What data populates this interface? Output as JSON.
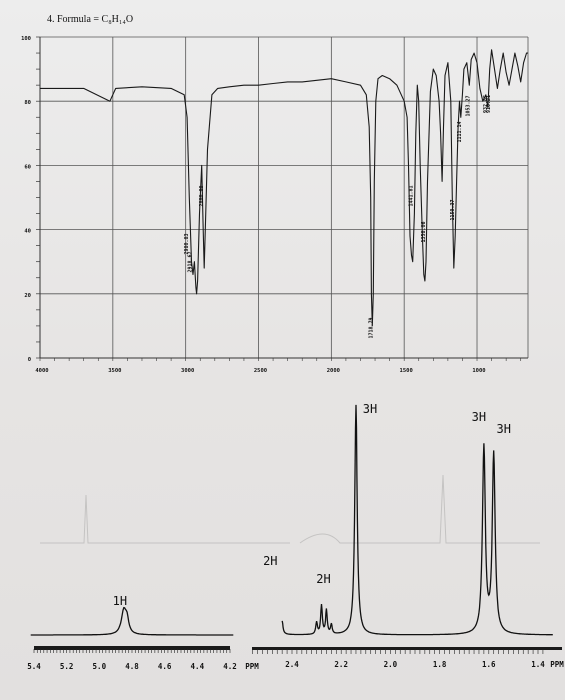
{
  "header": {
    "title": "4.  Formula = C₈H₁₄O"
  },
  "chart_data": [
    {
      "type": "line",
      "title": "",
      "xlabel": "",
      "ylabel": "",
      "x_reversed": true,
      "xlim": [
        4000,
        650
      ],
      "ylim": [
        0,
        100
      ],
      "x_ticks": [
        "4000",
        "3500",
        "3000",
        "2500",
        "2000",
        "1500",
        "1000"
      ],
      "y_ticks": [
        "100",
        "80",
        "60",
        "40",
        "20",
        "0"
      ],
      "grid": true,
      "series": [
        {
          "x": [
            4000,
            3700,
            3520,
            3480,
            3300,
            3100,
            3010,
            2990,
            2975,
            2960,
            2950,
            2940,
            2930,
            2925,
            2918,
            2905,
            2890,
            2880,
            2873,
            2865,
            2850,
            2820,
            2780,
            2700,
            2600,
            2500,
            2400,
            2300,
            2200,
            2100,
            2000,
            1900,
            1800,
            1760,
            1740,
            1730,
            1725,
            1718.79,
            1712,
            1705,
            1695,
            1680,
            1650,
            1600,
            1550,
            1500,
            1480,
            1470,
            1460,
            1450,
            1441.81,
            1430,
            1420,
            1410,
            1400,
            1390,
            1375,
            1365,
            1358.06,
            1350,
            1340,
            1320,
            1300,
            1280,
            1260,
            1250,
            1240,
            1230,
            1220,
            1200,
            1180,
            1170,
            1159.37,
            1150,
            1140,
            1130,
            1120,
            1111.14,
            1100,
            1090,
            1070,
            1053.27,
            1040,
            1020,
            1000,
            980,
            960,
            940,
            925,
            913,
            900,
            880,
            860,
            840,
            820,
            800,
            780,
            760,
            740,
            720,
            700,
            680,
            660,
            650
          ],
          "y": [
            84,
            84,
            80,
            84,
            84.5,
            84,
            82,
            75,
            50,
            30,
            26,
            30,
            22,
            20,
            24,
            45,
            60,
            40,
            28,
            40,
            65,
            82,
            84,
            84.5,
            85,
            85,
            85.5,
            86,
            86,
            86.5,
            87,
            86,
            85,
            82,
            72,
            50,
            20,
            10,
            20,
            55,
            80,
            87,
            88,
            87,
            85,
            80,
            75,
            60,
            38,
            32,
            30,
            45,
            70,
            85,
            80,
            60,
            38,
            26,
            24,
            30,
            55,
            83,
            90,
            88,
            80,
            70,
            55,
            72,
            88,
            92,
            80,
            50,
            28,
            38,
            55,
            72,
            80,
            75,
            82,
            90,
            92,
            85,
            93,
            95,
            92,
            84,
            80,
            82,
            78,
            90,
            96,
            90,
            84,
            90,
            95,
            89,
            85,
            90,
            95,
            91,
            86,
            92,
            95,
            95
          ]
        }
      ],
      "annotations": [
        "2980.83",
        "2918.67",
        "2880.88",
        "1718.79",
        "1441.81",
        "1358.06",
        "1159.37",
        "1111.14",
        "1053.27",
        "932.85",
        "910.21"
      ]
    },
    {
      "type": "line",
      "title": "",
      "xlabel": "",
      "ylabel": "",
      "x_reversed": true,
      "x_unit": "PPM",
      "x_ticks_left": [
        "5.4",
        "5.2",
        "5.0",
        "4.8",
        "4.6",
        "4.4",
        "4.2"
      ],
      "x_ticks_right": [
        "2.4",
        "2.2",
        "2.0",
        "1.8",
        "1.6",
        "1.4"
      ],
      "grid": false,
      "peaks": [
        {
          "label": "1H",
          "ppm": 4.85,
          "height": 0.1
        },
        {
          "label": "2H",
          "ppm": 2.48,
          "height": 0.17
        },
        {
          "label": "2H",
          "ppm": 2.28,
          "height": 0.12
        },
        {
          "label": "3H",
          "ppm": 2.14,
          "height": 0.95
        },
        {
          "label": "3H",
          "ppm": 1.62,
          "height": 0.77
        },
        {
          "label": "3H",
          "ppm": 1.58,
          "height": 0.74
        }
      ]
    }
  ]
}
